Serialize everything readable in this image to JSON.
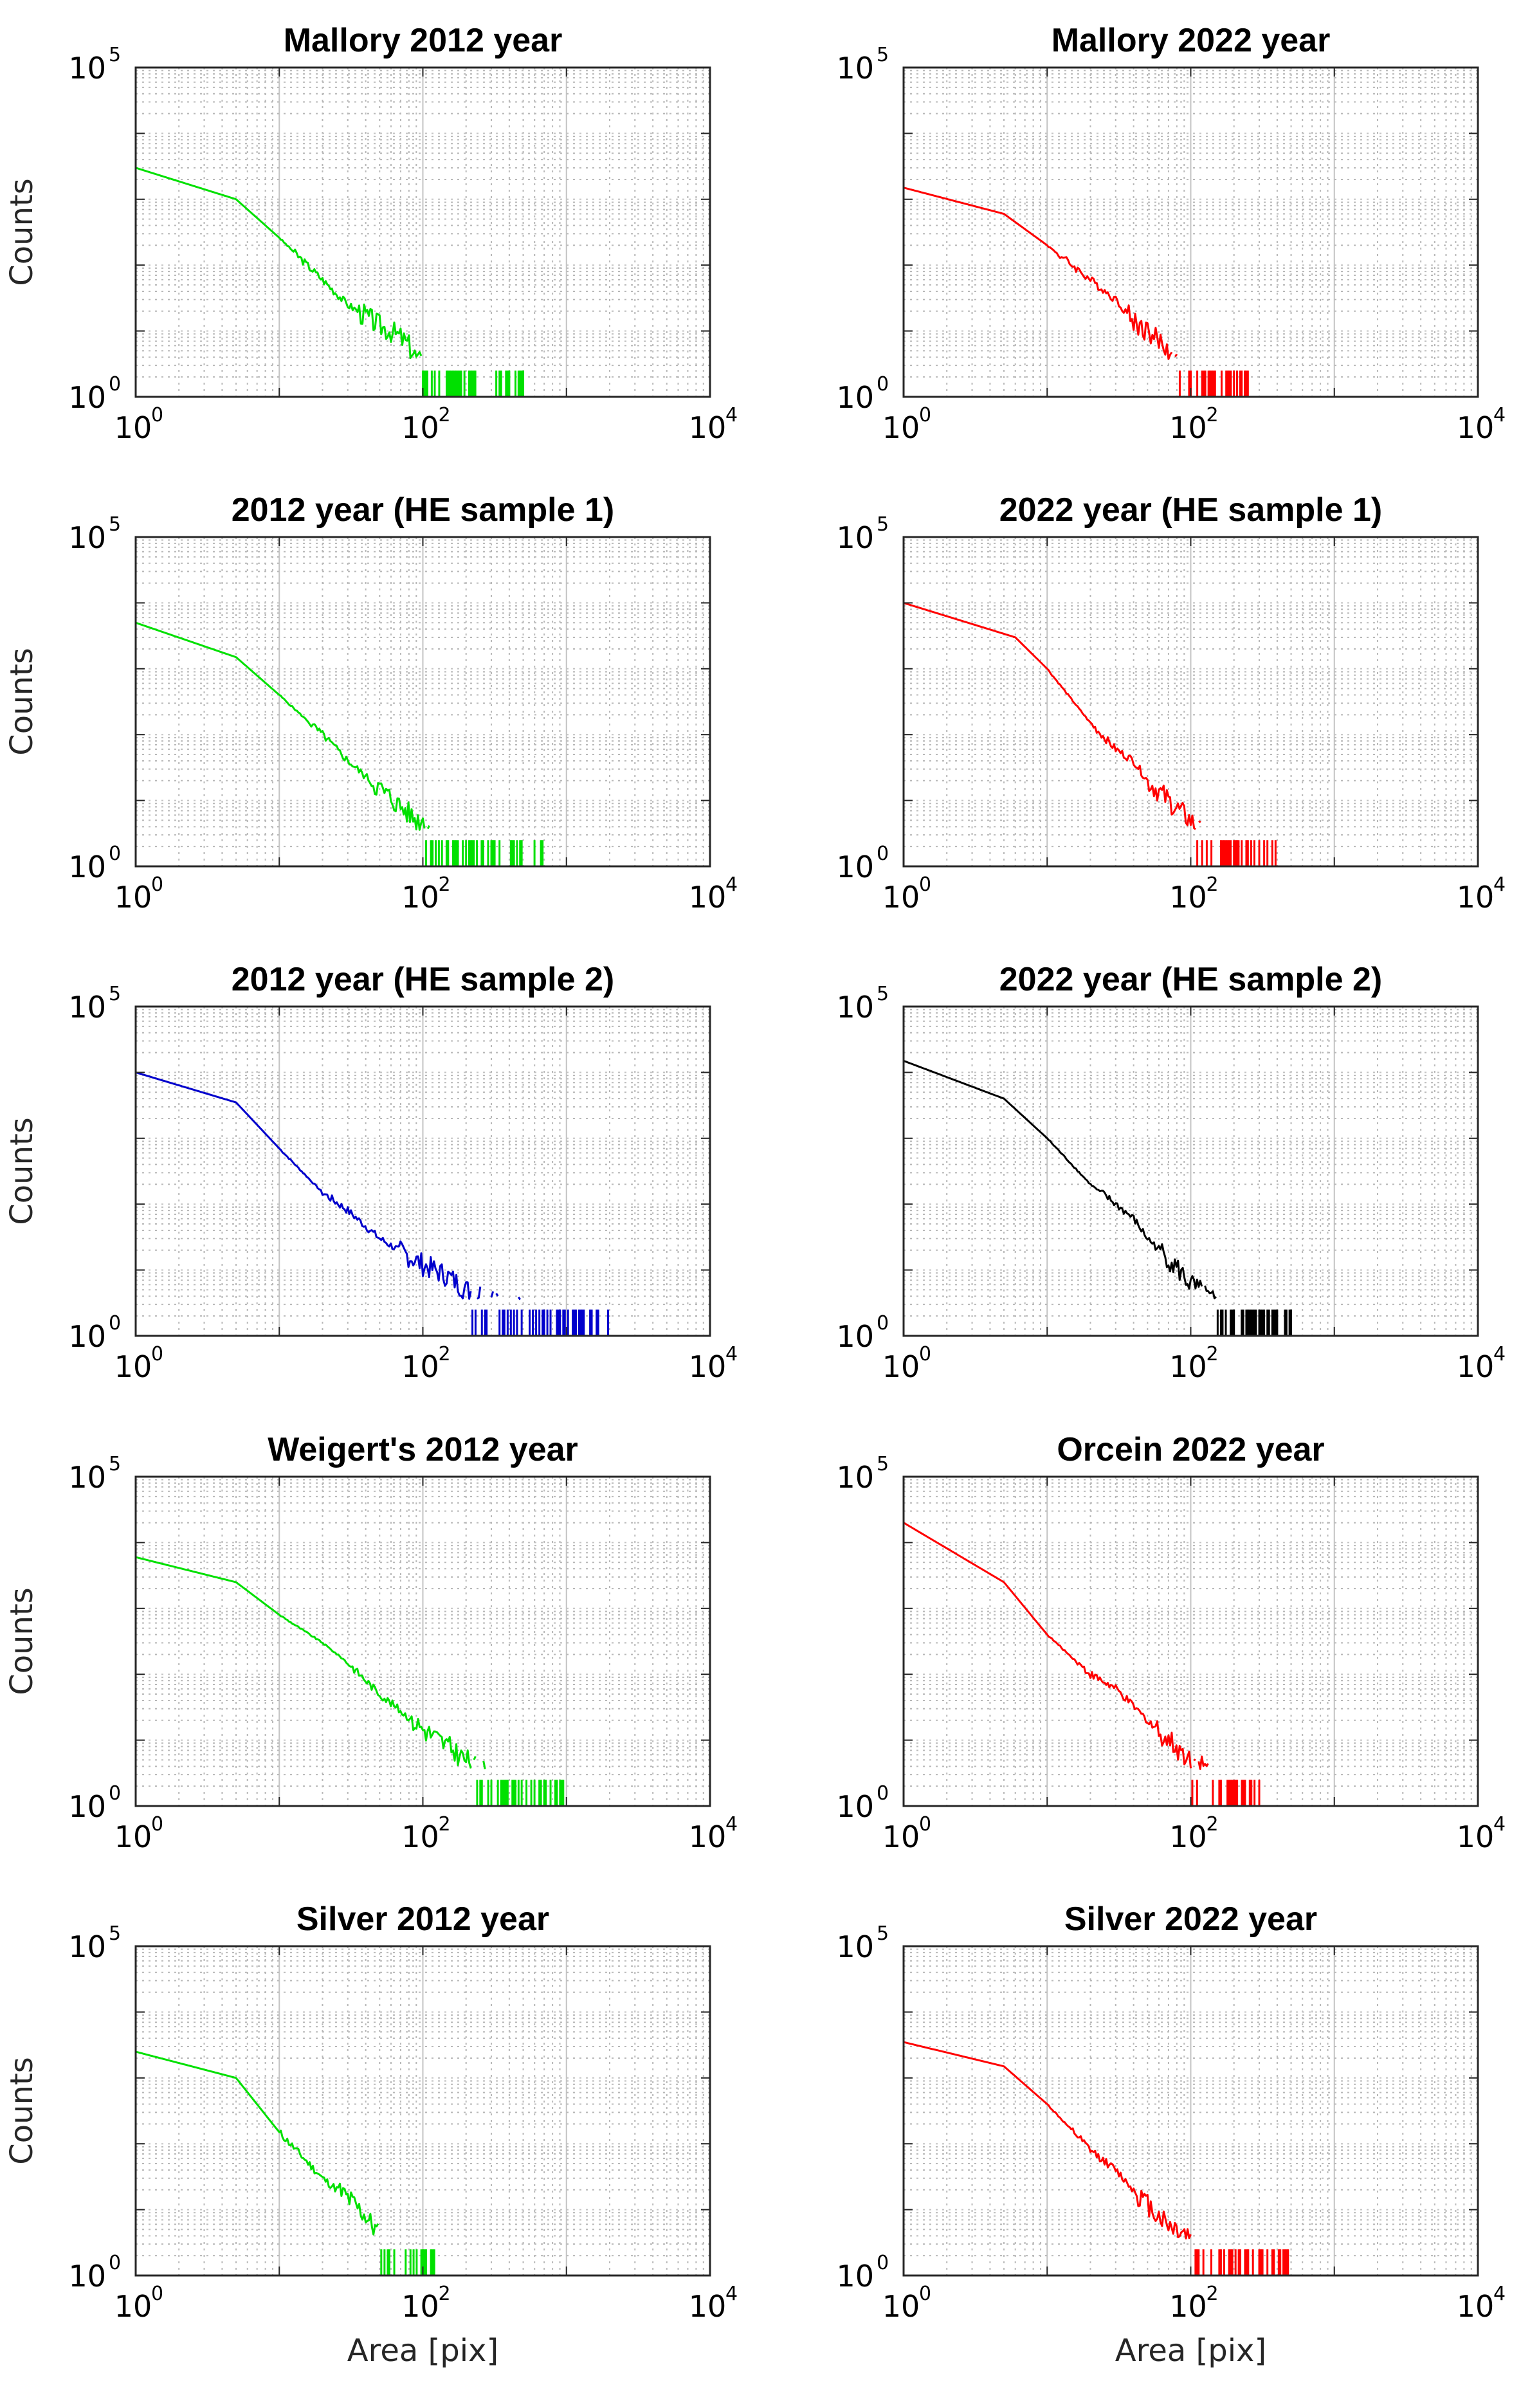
{
  "chart_data": [
    {
      "type": "line",
      "title": "Mallory 2012 year",
      "color": "#00e000",
      "xscale": "log",
      "yscale": "log",
      "xlim": [
        1,
        10000
      ],
      "ylim": [
        1,
        100000
      ],
      "xticks": {
        "base": "10",
        "exps": [
          "0",
          "2",
          "4"
        ]
      },
      "yticks": {
        "base": "10",
        "exps": [
          "0",
          "5"
        ]
      },
      "xlabel": "",
      "ylabel": "Counts",
      "grid": true,
      "x": [
        1,
        5,
        10,
        15,
        20,
        30,
        40,
        50,
        60,
        70,
        80,
        90,
        100,
        110,
        130,
        150,
        200,
        250,
        300,
        400,
        500
      ],
      "y": [
        3000,
        1000,
        260,
        110,
        60,
        25,
        17,
        12,
        10,
        8,
        6,
        4,
        3,
        2,
        3,
        2,
        2,
        1.5,
        1.5,
        1.5,
        1.5
      ]
    },
    {
      "type": "line",
      "title": "Mallory 2022 year",
      "color": "#ff0000",
      "xscale": "log",
      "yscale": "log",
      "xlim": [
        1,
        10000
      ],
      "ylim": [
        1,
        100000
      ],
      "xticks": {
        "base": "10",
        "exps": [
          "0",
          "2",
          "4"
        ]
      },
      "yticks": {
        "base": "10",
        "exps": [
          "0",
          "5"
        ]
      },
      "xlabel": "",
      "ylabel": "",
      "grid": true,
      "x": [
        1,
        5,
        10,
        20,
        30,
        40,
        50,
        60,
        70,
        80,
        90,
        100,
        120,
        140,
        160,
        200,
        250
      ],
      "y": [
        1500,
        600,
        200,
        60,
        30,
        14,
        10,
        7,
        5,
        4,
        3,
        2.5,
        2,
        1.5,
        1.5,
        1.5,
        1.5
      ]
    },
    {
      "type": "line",
      "title": "2012 year (HE sample 1)",
      "color": "#00e000",
      "xscale": "log",
      "yscale": "log",
      "xlim": [
        1,
        10000
      ],
      "ylim": [
        1,
        100000
      ],
      "xticks": {
        "base": "10",
        "exps": [
          "0",
          "2",
          "4"
        ]
      },
      "yticks": {
        "base": "10",
        "exps": [
          "0",
          "5"
        ]
      },
      "xlabel": "",
      "ylabel": "Counts",
      "grid": true,
      "x": [
        1,
        5,
        10,
        20,
        30,
        50,
        70,
        90,
        100,
        120,
        150,
        200,
        250,
        300,
        400,
        500,
        700
      ],
      "y": [
        5000,
        1500,
        400,
        100,
        40,
        15,
        8,
        5,
        5,
        3,
        3,
        2,
        2,
        1.5,
        1.5,
        1.5,
        1.5
      ]
    },
    {
      "type": "line",
      "title": "2022 year (HE sample 1)",
      "color": "#ff0000",
      "xscale": "log",
      "yscale": "log",
      "xlim": [
        1,
        10000
      ],
      "ylim": [
        1,
        100000
      ],
      "xticks": {
        "base": "10",
        "exps": [
          "0",
          "2",
          "4"
        ]
      },
      "yticks": {
        "base": "10",
        "exps": [
          "0",
          "5"
        ]
      },
      "xlabel": "",
      "ylabel": "",
      "grid": true,
      "x": [
        1,
        6,
        10,
        20,
        30,
        40,
        50,
        70,
        90,
        100,
        120,
        150,
        200,
        250,
        300,
        400
      ],
      "y": [
        10000,
        3000,
        1000,
        150,
        60,
        40,
        20,
        10,
        6,
        5,
        3,
        2.5,
        2,
        1.5,
        1.5,
        1.5
      ]
    },
    {
      "type": "line",
      "title": "2012 year (HE sample 2)",
      "color": "#0000cc",
      "xscale": "log",
      "yscale": "log",
      "xlim": [
        1,
        10000
      ],
      "ylim": [
        1,
        100000
      ],
      "xticks": {
        "base": "10",
        "exps": [
          "0",
          "2",
          "4"
        ]
      },
      "yticks": {
        "base": "10",
        "exps": [
          "0",
          "5"
        ]
      },
      "xlabel": "",
      "ylabel": "Counts",
      "grid": true,
      "x": [
        1,
        5,
        10,
        20,
        30,
        50,
        100,
        150,
        200,
        300,
        400,
        500,
        700,
        1000,
        1500,
        2000
      ],
      "y": [
        10000,
        3500,
        700,
        150,
        80,
        30,
        12,
        8,
        5,
        4,
        3,
        2.5,
        2,
        1.5,
        1.5,
        1.5
      ]
    },
    {
      "type": "line",
      "title": "2022 year (HE sample 2)",
      "color": "#000000",
      "xscale": "log",
      "yscale": "log",
      "xlim": [
        1,
        10000
      ],
      "ylim": [
        1,
        100000
      ],
      "xticks": {
        "base": "10",
        "exps": [
          "0",
          "2",
          "4"
        ]
      },
      "yticks": {
        "base": "10",
        "exps": [
          "0",
          "5"
        ]
      },
      "xlabel": "",
      "ylabel": "",
      "grid": true,
      "x": [
        1,
        5,
        10,
        20,
        30,
        40,
        50,
        70,
        100,
        150,
        200,
        250,
        300,
        400,
        500
      ],
      "y": [
        15000,
        4000,
        1000,
        200,
        100,
        60,
        30,
        15,
        6,
        3,
        2,
        2,
        1.5,
        1.5,
        1.5
      ]
    },
    {
      "type": "line",
      "title": "Weigert's 2012 year",
      "color": "#00e000",
      "xscale": "log",
      "yscale": "log",
      "xlim": [
        1,
        10000
      ],
      "ylim": [
        1,
        100000
      ],
      "xticks": {
        "base": "10",
        "exps": [
          "0",
          "2",
          "4"
        ]
      },
      "yticks": {
        "base": "10",
        "exps": [
          "0",
          "5"
        ]
      },
      "xlabel": "",
      "ylabel": "Counts",
      "grid": true,
      "x": [
        1,
        5,
        10,
        20,
        30,
        50,
        100,
        150,
        200,
        300,
        400,
        500,
        700,
        1000
      ],
      "y": [
        6000,
        2500,
        800,
        300,
        150,
        50,
        15,
        8,
        5,
        3,
        2.5,
        2,
        1.5,
        1.5
      ]
    },
    {
      "type": "line",
      "title": "Orcein 2022 year",
      "color": "#ff0000",
      "xscale": "log",
      "yscale": "log",
      "xlim": [
        1,
        10000
      ],
      "ylim": [
        1,
        100000
      ],
      "xticks": {
        "base": "10",
        "exps": [
          "0",
          "2",
          "4"
        ]
      },
      "yticks": {
        "base": "10",
        "exps": [
          "0",
          "5"
        ]
      },
      "xlabel": "",
      "ylabel": "",
      "grid": true,
      "x": [
        1,
        5,
        10,
        20,
        30,
        50,
        70,
        100,
        150,
        200,
        300
      ],
      "y": [
        20000,
        2500,
        400,
        100,
        60,
        20,
        10,
        5,
        3,
        2,
        1.5
      ]
    },
    {
      "type": "line",
      "title": "Silver 2012 year",
      "color": "#00e000",
      "xscale": "log",
      "yscale": "log",
      "xlim": [
        1,
        10000
      ],
      "ylim": [
        1,
        100000
      ],
      "xticks": {
        "base": "10",
        "exps": [
          "0",
          "2",
          "4"
        ]
      },
      "yticks": {
        "base": "10",
        "exps": [
          "0",
          "5"
        ]
      },
      "xlabel": "Area [pix]",
      "ylabel": "Counts",
      "grid": true,
      "x": [
        1,
        5,
        10,
        20,
        30,
        40,
        50,
        60,
        80,
        100,
        120
      ],
      "y": [
        2500,
        1000,
        150,
        30,
        15,
        8,
        4,
        3,
        2,
        1.5,
        1.5
      ]
    },
    {
      "type": "line",
      "title": "Silver 2022 year",
      "color": "#ff0000",
      "xscale": "log",
      "yscale": "log",
      "xlim": [
        1,
        10000
      ],
      "ylim": [
        1,
        100000
      ],
      "xticks": {
        "base": "10",
        "exps": [
          "0",
          "2",
          "4"
        ]
      },
      "yticks": {
        "base": "10",
        "exps": [
          "0",
          "5"
        ]
      },
      "xlabel": "Area [pix]",
      "ylabel": "",
      "grid": true,
      "x": [
        1,
        5,
        10,
        20,
        30,
        40,
        50,
        70,
        100,
        150,
        200,
        300,
        400,
        500
      ],
      "y": [
        3500,
        1500,
        400,
        80,
        40,
        20,
        12,
        6,
        4,
        2.5,
        2,
        1.5,
        1.5,
        1.5
      ]
    }
  ]
}
